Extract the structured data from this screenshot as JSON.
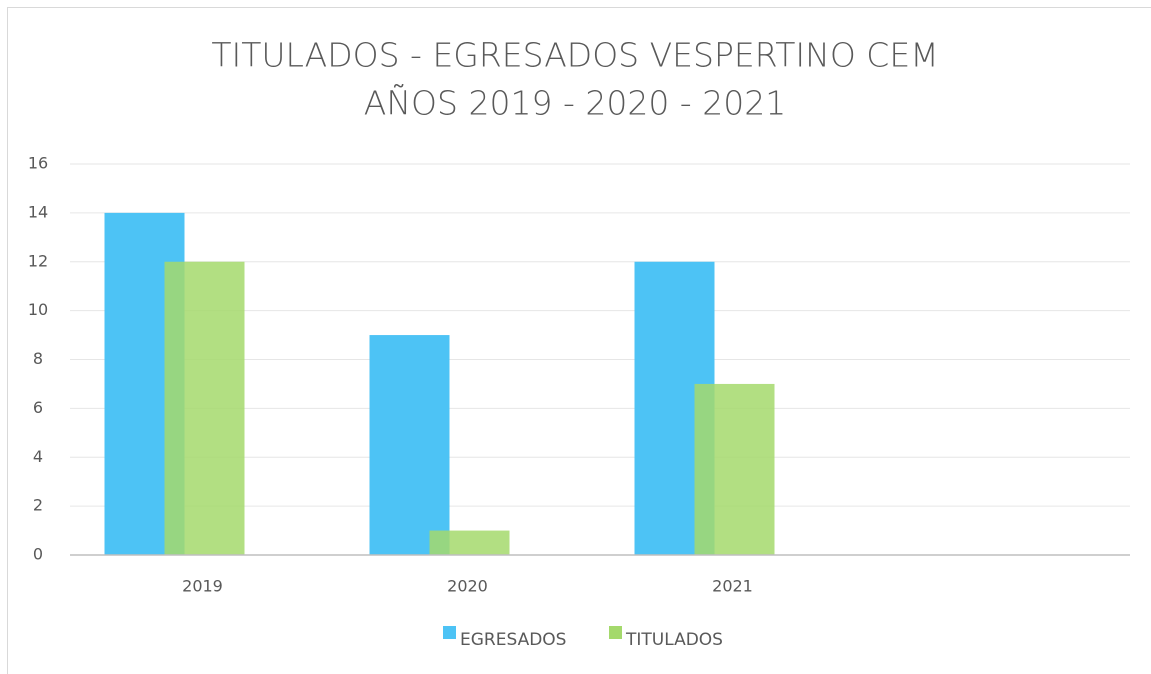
{
  "chart_data": {
    "type": "bar",
    "title": [
      "TITULADOS - EGRESADOS VESPERTINO CEM",
      "AÑOS 2019 - 2020 - 2021"
    ],
    "categories": [
      "2019",
      "2020",
      "2021",
      null
    ],
    "series": [
      {
        "name": "EGRESADOS",
        "color": "#4dc3f5",
        "values": [
          14,
          9,
          12,
          null
        ]
      },
      {
        "name": "TITULADOS",
        "color": "#a4d96c",
        "values": [
          12,
          1,
          7,
          null
        ]
      }
    ],
    "ylim": [
      0,
      16
    ],
    "yticks": [
      0,
      2,
      4,
      6,
      8,
      10,
      12,
      14,
      16
    ],
    "grid": true,
    "legend": "bottom"
  }
}
